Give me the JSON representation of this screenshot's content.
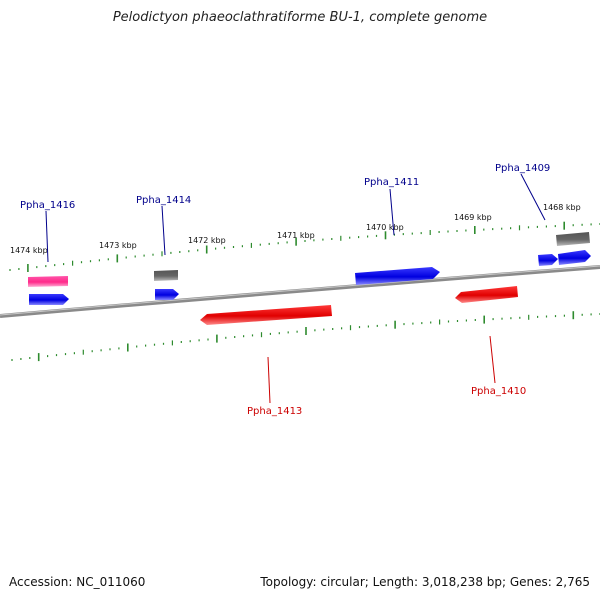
{
  "title": "Pelodictyon phaeoclathratiforme BU-1, complete genome",
  "accession_text": "Accession: NC_011060",
  "topology_text": "Topology: circular; Length: 3,018,238 bp; Genes: 2,765",
  "colors": {
    "forward_cds": "#0000ee",
    "reverse_cds": "#ee0000",
    "pseudo_or_rna": "#ff3399",
    "other": "#777777",
    "backbone": "#8a8a8a",
    "ticks": "#2e8b2e",
    "label_forward": "#00008b",
    "label_reverse": "#cc0000"
  },
  "kbp_labels": [
    "1474 kbp",
    "1473 kbp",
    "1472 kbp",
    "1471 kbp",
    "1470 kbp",
    "1469 kbp",
    "1468 kbp"
  ],
  "gene_labels": [
    "Ppha_1416",
    "Ppha_1414",
    "Ppha_1411",
    "Ppha_1409",
    "Ppha_1413",
    "Ppha_1410"
  ]
}
